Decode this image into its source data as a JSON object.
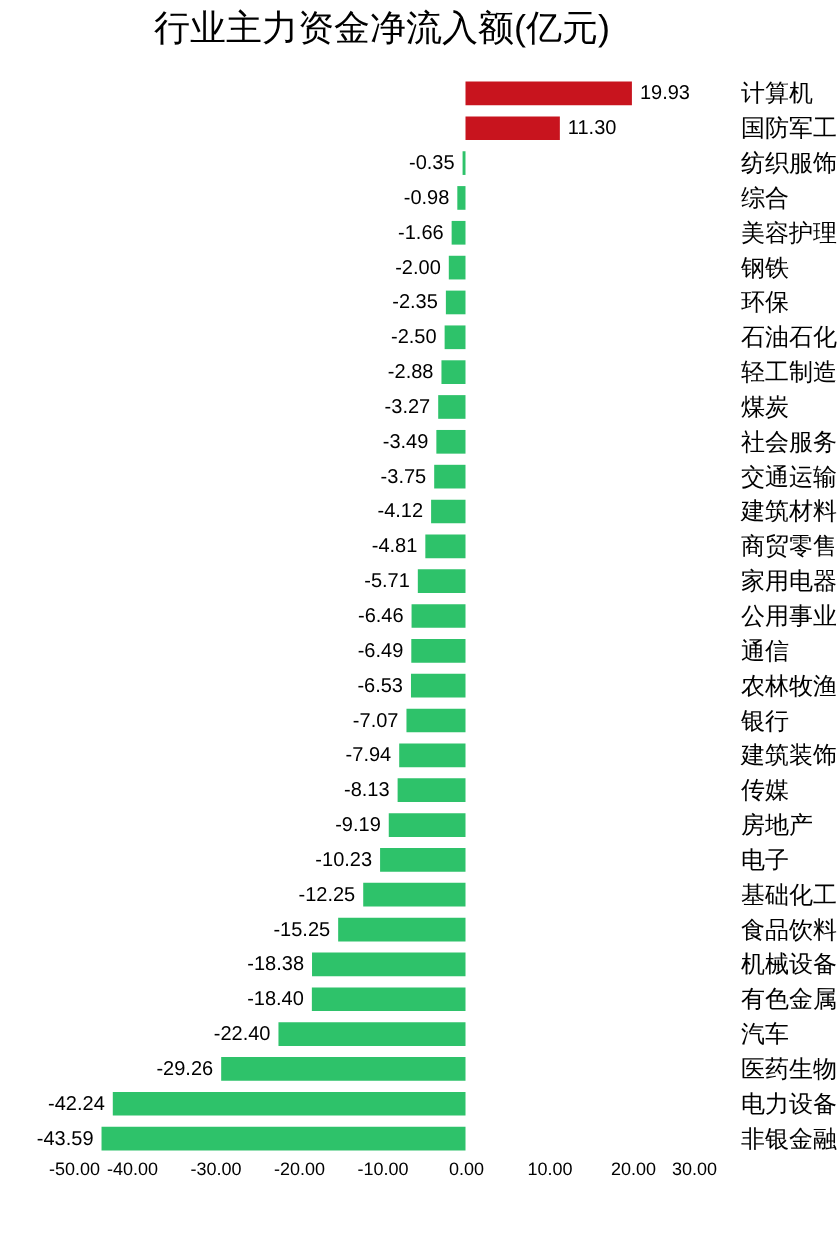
{
  "chart_data": {
    "type": "bar",
    "orientation": "horizontal",
    "title": "行业主力资金净流入额(亿元)",
    "categories": [
      "计算机",
      "国防军工",
      "纺织服饰",
      "综合",
      "美容护理",
      "钢铁",
      "环保",
      "石油石化",
      "轻工制造",
      "煤炭",
      "社会服务",
      "交通运输",
      "建筑材料",
      "商贸零售",
      "家用电器",
      "公用事业",
      "通信",
      "农林牧渔",
      "银行",
      "建筑装饰",
      "传媒",
      "房地产",
      "电子",
      "基础化工",
      "食品饮料",
      "机械设备",
      "有色金属",
      "汽车",
      "医药生物",
      "电力设备",
      "非银金融"
    ],
    "values": [
      19.93,
      11.3,
      -0.35,
      -0.98,
      -1.66,
      -2.0,
      -2.35,
      -2.5,
      -2.88,
      -3.27,
      -3.49,
      -3.75,
      -4.12,
      -4.81,
      -5.71,
      -6.46,
      -6.49,
      -6.53,
      -7.07,
      -7.94,
      -8.13,
      -9.19,
      -10.23,
      -12.25,
      -15.25,
      -18.38,
      -18.4,
      -22.4,
      -29.26,
      -42.24,
      -43.59
    ],
    "value_labels": [
      "19.93",
      "11.30",
      "-0.35",
      "-0.98",
      "-1.66",
      "-2.00",
      "-2.35",
      "-2.50",
      "-2.88",
      "-3.27",
      "-3.49",
      "-3.75",
      "-4.12",
      "-4.81",
      "-5.71",
      "-6.46",
      "-6.49",
      "-6.53",
      "-7.07",
      "-7.94",
      "-8.13",
      "-9.19",
      "-10.23",
      "-12.25",
      "-15.25",
      "-18.38",
      "-18.40",
      "-22.40",
      "-29.26",
      "-42.24",
      "-43.59"
    ],
    "colors": [
      "#c8141e",
      "#c8141e",
      "#2ec26a",
      "#2ec26a",
      "#2ec26a",
      "#2ec26a",
      "#2ec26a",
      "#2ec26a",
      "#2ec26a",
      "#2ec26a",
      "#2ec26a",
      "#2ec26a",
      "#2ec26a",
      "#2ec26a",
      "#2ec26a",
      "#2ec26a",
      "#2ec26a",
      "#2ec26a",
      "#2ec26a",
      "#2ec26a",
      "#2ec26a",
      "#2ec26a",
      "#2ec26a",
      "#2ec26a",
      "#2ec26a",
      "#2ec26a",
      "#2ec26a",
      "#2ec26a",
      "#2ec26a",
      "#2ec26a",
      "#2ec26a"
    ],
    "xlim": [
      -50,
      30
    ],
    "xticks": [
      {
        "value": -50,
        "label": "-50.00"
      },
      {
        "value": -40,
        "label": "-40.00"
      },
      {
        "value": -30,
        "label": "-30.00"
      },
      {
        "value": -20,
        "label": "-20.00"
      },
      {
        "value": -10,
        "label": "-10.00"
      },
      {
        "value": 0,
        "label": "0.00"
      },
      {
        "value": 10,
        "label": "10.00"
      },
      {
        "value": 20,
        "label": "20.00"
      },
      {
        "value": 30,
        "label": "30.00"
      }
    ],
    "grid": false
  }
}
